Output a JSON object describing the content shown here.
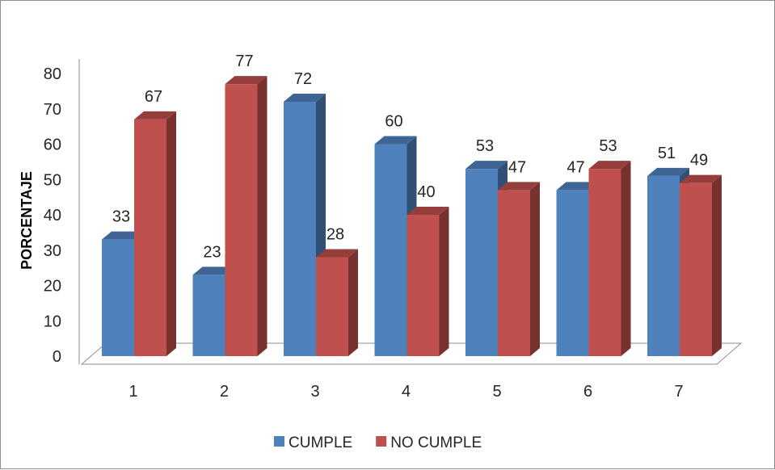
{
  "chart_data": {
    "type": "bar",
    "style": "3d-clustered-column",
    "categories": [
      "1",
      "2",
      "3",
      "4",
      "5",
      "6",
      "7"
    ],
    "series": [
      {
        "name": "CUMPLE",
        "values": [
          33,
          23,
          72,
          60,
          53,
          47,
          51
        ],
        "color": "#4f81bd"
      },
      {
        "name": "NO CUMPLE",
        "values": [
          67,
          77,
          28,
          40,
          47,
          53,
          49
        ],
        "color": "#c0504d"
      }
    ],
    "ylabel": "PORCENTAJE",
    "xlabel": "",
    "title": "",
    "ylim": [
      0,
      80
    ],
    "yticks": [
      0,
      10,
      20,
      30,
      40,
      50,
      60,
      70,
      80
    ],
    "grid": false,
    "legend": "bottom",
    "data_labels": true
  }
}
